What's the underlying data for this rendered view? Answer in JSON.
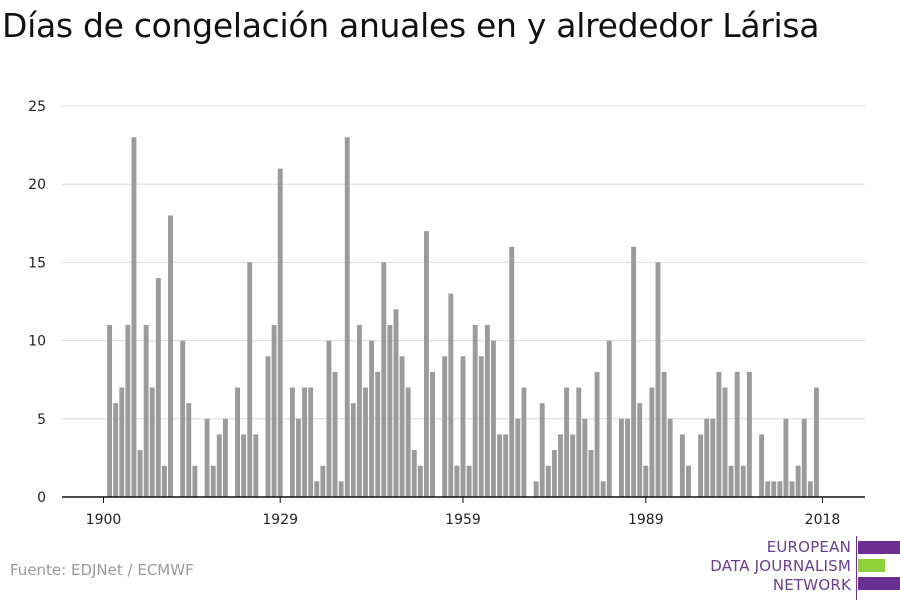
{
  "title": "Días de congelación anuales en y alrededor Lárisa",
  "source": "Fuente: EDJNet / ECMWF",
  "logo": {
    "lines": [
      "EUROPEAN",
      "DATA JOURNALISM",
      "NETWORK"
    ],
    "colors": {
      "purple": "#6a2f91",
      "green": "#8fd13a",
      "text": "#6a3d8f"
    }
  },
  "colors": {
    "bar": "#9b9b9b",
    "grid": "#dddddd",
    "axis": "#111111"
  },
  "chart_data": {
    "type": "bar",
    "title": "Días de congelación anuales en y alrededor Lárisa",
    "xlabel": "",
    "ylabel": "",
    "ylim": [
      0,
      25
    ],
    "yticks": [
      0,
      5,
      10,
      15,
      20,
      25
    ],
    "xticks": [
      1900,
      1929,
      1959,
      1989,
      2018
    ],
    "grid": true,
    "x": [
      1900,
      1901,
      1902,
      1903,
      1904,
      1905,
      1906,
      1907,
      1908,
      1909,
      1910,
      1911,
      1912,
      1913,
      1914,
      1915,
      1916,
      1917,
      1918,
      1919,
      1920,
      1921,
      1922,
      1923,
      1924,
      1925,
      1926,
      1927,
      1928,
      1929,
      1930,
      1931,
      1932,
      1933,
      1934,
      1935,
      1936,
      1937,
      1938,
      1939,
      1940,
      1941,
      1942,
      1943,
      1944,
      1945,
      1946,
      1947,
      1948,
      1949,
      1950,
      1951,
      1952,
      1953,
      1954,
      1955,
      1956,
      1957,
      1958,
      1959,
      1960,
      1961,
      1962,
      1963,
      1964,
      1965,
      1966,
      1967,
      1968,
      1969,
      1970,
      1971,
      1972,
      1973,
      1974,
      1975,
      1976,
      1977,
      1978,
      1979,
      1980,
      1981,
      1982,
      1983,
      1984,
      1985,
      1986,
      1987,
      1988,
      1989,
      1990,
      1991,
      1992,
      1993,
      1994,
      1995,
      1996,
      1997,
      1998,
      1999,
      2000,
      2001,
      2002,
      2003,
      2004,
      2005,
      2006,
      2007,
      2008,
      2009,
      2010,
      2011,
      2012,
      2013,
      2014,
      2015,
      2016,
      2017,
      2018
    ],
    "values": [
      0,
      11,
      6,
      7,
      11,
      23,
      3,
      11,
      7,
      14,
      2,
      18,
      0,
      10,
      6,
      2,
      0,
      5,
      2,
      4,
      5,
      0,
      7,
      4,
      15,
      4,
      0,
      9,
      11,
      21,
      0,
      7,
      5,
      7,
      7,
      1,
      2,
      10,
      8,
      1,
      23,
      6,
      11,
      7,
      10,
      8,
      15,
      11,
      12,
      9,
      7,
      3,
      2,
      17,
      8,
      0,
      9,
      13,
      2,
      9,
      2,
      11,
      9,
      11,
      10,
      4,
      4,
      16,
      5,
      7,
      0,
      1,
      6,
      2,
      3,
      4,
      7,
      4,
      7,
      5,
      3,
      8,
      1,
      10,
      0,
      5,
      5,
      16,
      6,
      2,
      7,
      15,
      8,
      5,
      0,
      4,
      2,
      0,
      4,
      5,
      5,
      8,
      7,
      2,
      8,
      2,
      8,
      0,
      4,
      1,
      1,
      1,
      5,
      1,
      2,
      5,
      1,
      7,
      0
    ]
  }
}
